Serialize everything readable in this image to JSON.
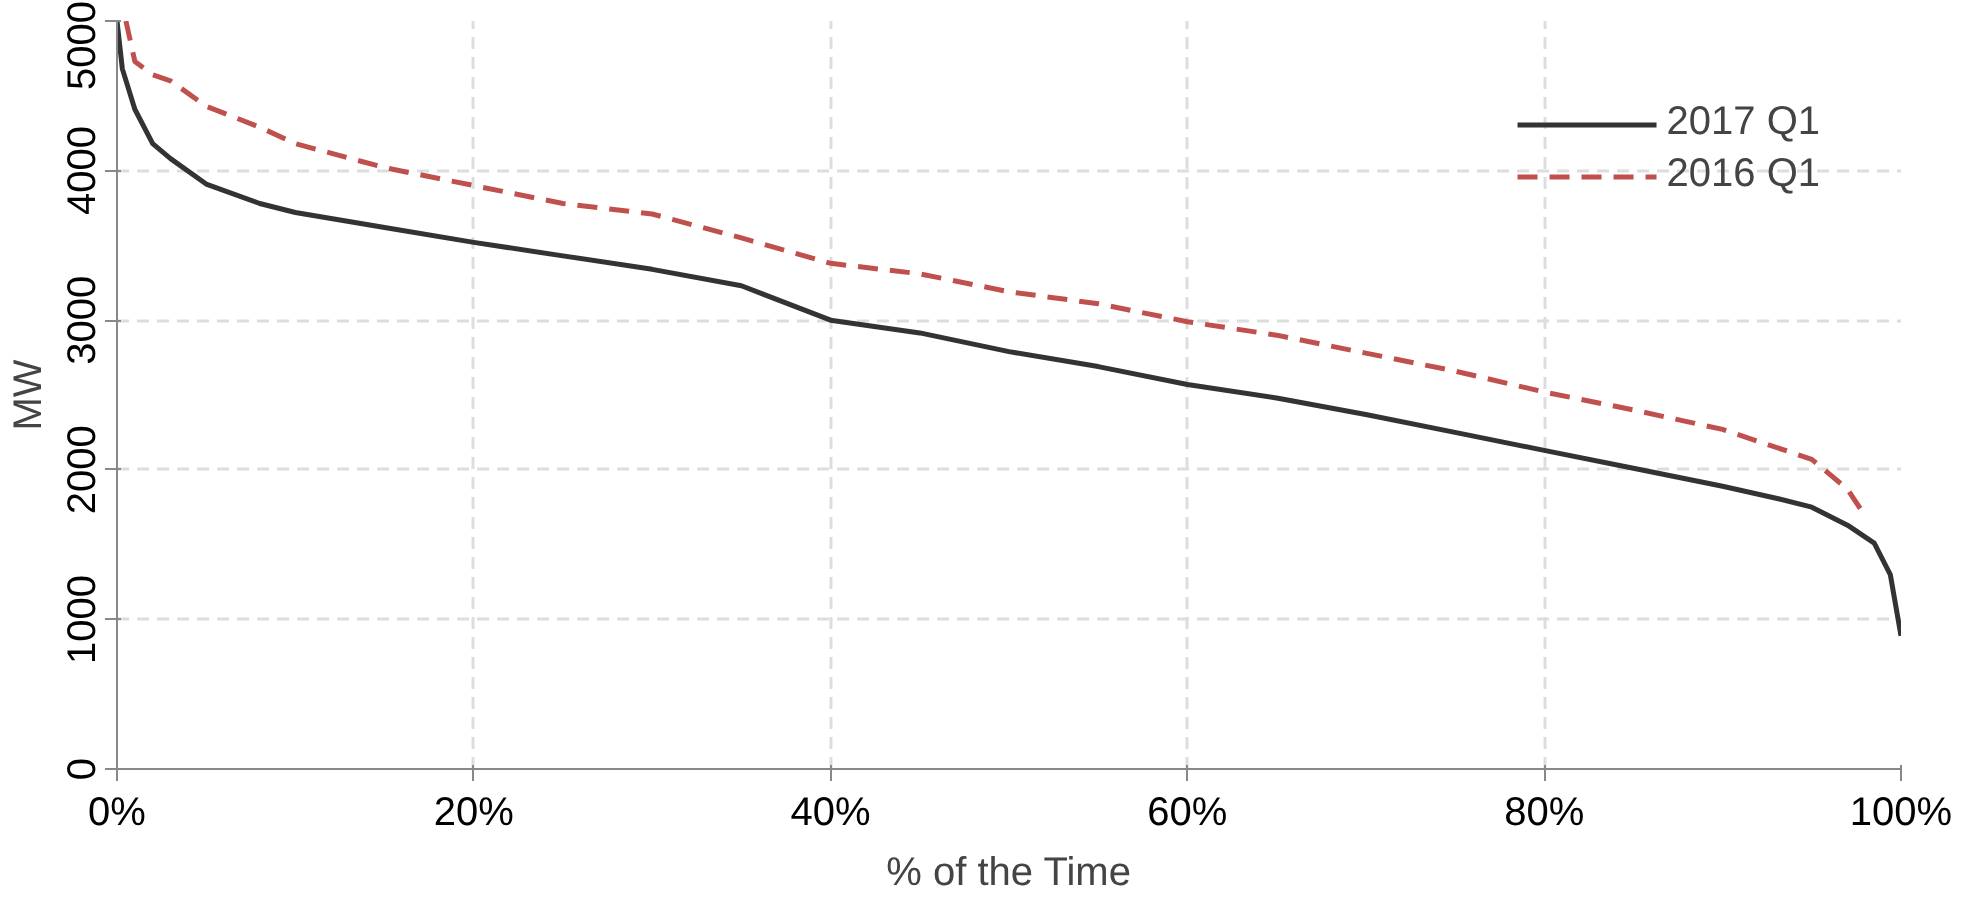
{
  "chart_data": {
    "type": "line",
    "xlabel": "% of the Time",
    "ylabel": "MW",
    "xlim": [
      0,
      100
    ],
    "xticks": [
      {
        "value": 0,
        "label": "0%"
      },
      {
        "value": 20,
        "label": "20%"
      },
      {
        "value": 40,
        "label": "40%"
      },
      {
        "value": 60,
        "label": "60%"
      },
      {
        "value": 80,
        "label": "80%"
      },
      {
        "value": 100,
        "label": "100%"
      }
    ],
    "ylim": [
      0,
      5000
    ],
    "yticks": [
      0,
      1000,
      2000,
      3000,
      4000,
      5000
    ],
    "grid": true,
    "legend": "top right",
    "marker": "none",
    "series": [
      {
        "name": "2017 Q1",
        "color": "#333333",
        "line_style": "solid",
        "x": [
          0,
          0.3,
          1,
          2,
          3,
          5,
          8,
          10,
          15,
          20,
          25,
          30,
          35,
          40,
          45,
          50,
          55,
          60,
          65,
          70,
          75,
          80,
          85,
          90,
          93,
          95,
          97,
          98.5,
          99.4,
          100
        ],
        "values": [
          5000,
          4680,
          4410,
          4180,
          4080,
          3910,
          3780,
          3720,
          3620,
          3520,
          3430,
          3340,
          3230,
          3000,
          2915,
          2790,
          2690,
          2570,
          2480,
          2370,
          2250,
          2130,
          2010,
          1890,
          1810,
          1750,
          1630,
          1510,
          1300,
          890
        ]
      },
      {
        "name": "2016 Q1",
        "color": "#c0504d",
        "line_style": "dashed",
        "x": [
          0.5,
          1,
          2,
          3,
          5,
          8,
          10,
          15,
          20,
          25,
          30,
          35,
          40,
          45,
          50,
          55,
          60,
          65,
          70,
          75,
          80,
          85,
          90,
          95,
          97,
          98
        ],
        "values": [
          5000,
          4730,
          4640,
          4600,
          4430,
          4290,
          4180,
          4020,
          3900,
          3780,
          3710,
          3550,
          3380,
          3310,
          3190,
          3110,
          2990,
          2900,
          2780,
          2660,
          2520,
          2400,
          2270,
          2070,
          1870,
          1690
        ]
      }
    ]
  }
}
